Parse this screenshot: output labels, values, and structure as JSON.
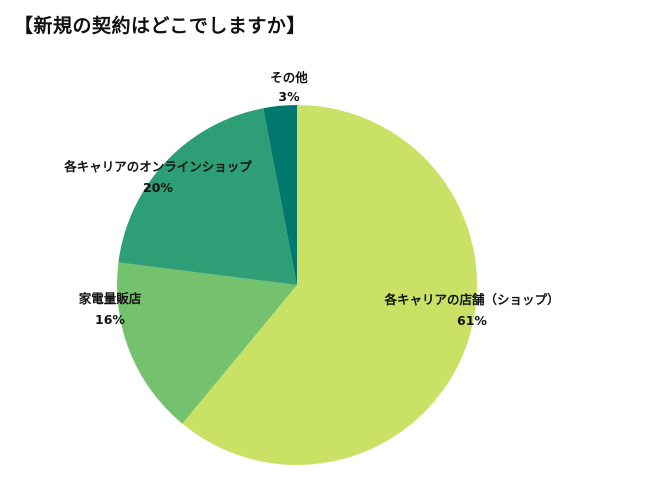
{
  "chart_data": {
    "type": "pie",
    "title": "【新規の契約はどこでしますか】",
    "unit": "%",
    "slices": [
      {
        "name": "各キャリアの店舗（ショップ）",
        "value": 61,
        "label": "61%",
        "color": "#c9e265"
      },
      {
        "name": "家電量販店",
        "value": 16,
        "label": "16%",
        "color": "#74c26e"
      },
      {
        "name": "各キャリアのオンラインショップ",
        "value": 20,
        "label": "20%",
        "color": "#2e9e77"
      },
      {
        "name": "その他",
        "value": 3,
        "label": "3%",
        "color": "#00786e"
      }
    ],
    "start": "top",
    "direction": "clockwise",
    "legend": "none"
  }
}
